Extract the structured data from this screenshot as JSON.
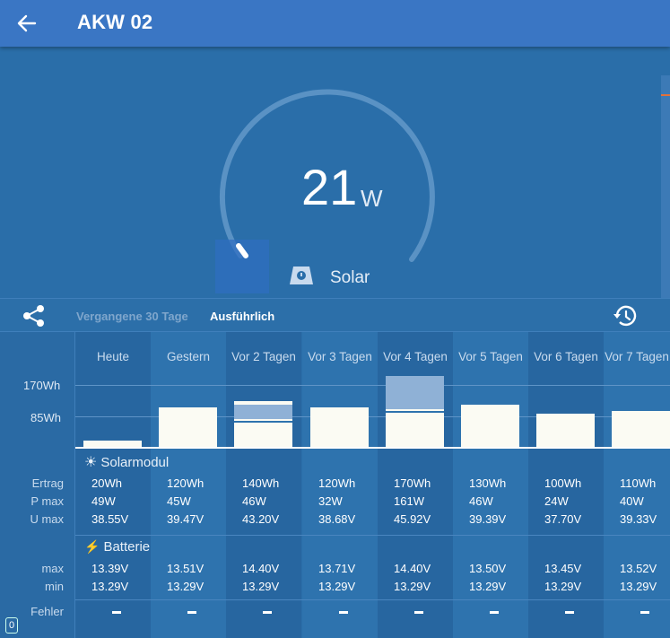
{
  "appbar": {
    "title": "AKW 02",
    "back_icon": "arrow-left-icon"
  },
  "gauge": {
    "value": "21",
    "unit": "W",
    "source_label": "Solar",
    "source_icon": "solar-panel-icon",
    "level_fraction": 0.04
  },
  "tabs": {
    "history_30": "Vergangene 30 Tage",
    "detailed": "Ausführlich"
  },
  "chart": {
    "y_ticks": [
      "170Wh",
      "85Wh"
    ],
    "days": [
      {
        "label": "Heute",
        "yield_wh": 20,
        "extra_wh": 0
      },
      {
        "label": "Gestern",
        "yield_wh": 120,
        "extra_wh": 0
      },
      {
        "label": "Vor 2 Tagen",
        "yield_wh": 140,
        "extra_wh": 0.2
      },
      {
        "label": "Vor 3 Tagen",
        "yield_wh": 120,
        "extra_wh": 0
      },
      {
        "label": "Vor 4 Tagen",
        "yield_wh": 170,
        "extra_wh": 0.5
      },
      {
        "label": "Vor 5 Tagen",
        "yield_wh": 130,
        "extra_wh": 0
      },
      {
        "label": "Vor 6 Tagen",
        "yield_wh": 100,
        "extra_wh": 0
      },
      {
        "label": "Vor 7 Tagen",
        "yield_wh": 110,
        "extra_wh": 0
      }
    ]
  },
  "solar_section": {
    "title": "Solarmodul",
    "icon": "sun-icon",
    "rows": [
      {
        "label": "Ertrag",
        "values": [
          "20Wh",
          "120Wh",
          "140Wh",
          "120Wh",
          "170Wh",
          "130Wh",
          "100Wh",
          "110Wh"
        ]
      },
      {
        "label": "P max",
        "values": [
          "49W",
          "45W",
          "46W",
          "32W",
          "161W",
          "46W",
          "24W",
          "40W"
        ]
      },
      {
        "label": "U max",
        "values": [
          "38.55V",
          "39.47V",
          "43.20V",
          "38.68V",
          "45.92V",
          "39.39V",
          "37.70V",
          "39.33V"
        ]
      }
    ]
  },
  "battery_section": {
    "title": "Batterie",
    "icon": "lightning-icon",
    "rows": [
      {
        "label": "max",
        "values": [
          "13.39V",
          "13.51V",
          "14.40V",
          "13.71V",
          "14.40V",
          "13.50V",
          "13.45V",
          "13.52V"
        ]
      },
      {
        "label": "min",
        "values": [
          "13.29V",
          "13.29V",
          "13.29V",
          "13.29V",
          "13.29V",
          "13.29V",
          "13.29V",
          "13.29V"
        ]
      }
    ]
  },
  "errors_row": {
    "label": "Fehler"
  },
  "corner_badge": "0"
}
